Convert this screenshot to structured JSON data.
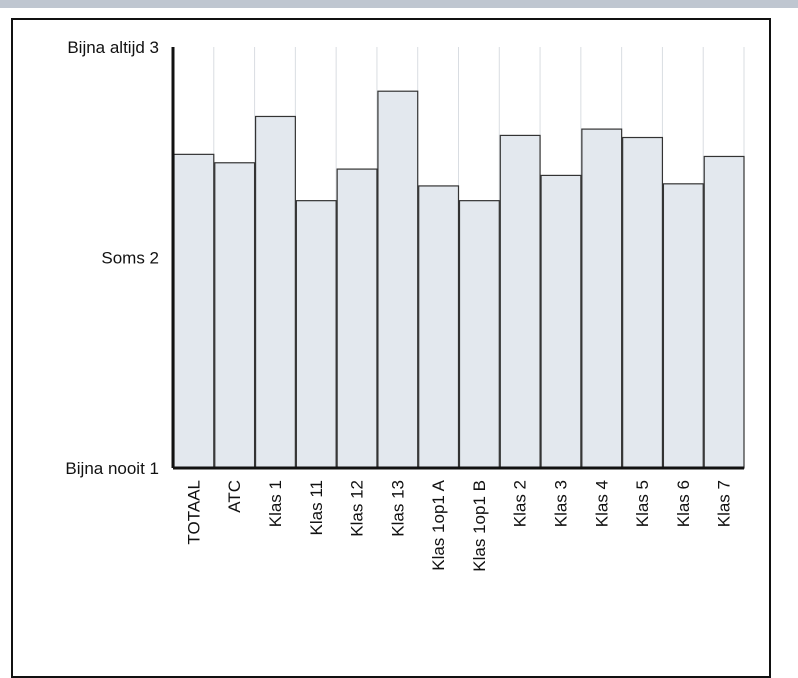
{
  "chart_data": {
    "type": "bar",
    "title": "",
    "xlabel": "",
    "ylabel": "",
    "categories": [
      "TOTAAL",
      "ATC",
      "Klas 1",
      "Klas 11",
      "Klas 12",
      "Klas 13",
      "Klas 1op1 A",
      "Klas 1op1 B",
      "Klas 2",
      "Klas 3",
      "Klas 4",
      "Klas 5",
      "Klas 6",
      "Klas 7"
    ],
    "values": [
      2.49,
      2.45,
      2.67,
      2.27,
      2.42,
      2.79,
      2.34,
      2.27,
      2.58,
      2.39,
      2.61,
      2.57,
      2.35,
      2.48
    ],
    "ylim": [
      1,
      3
    ],
    "yticks": [
      {
        "value": 1,
        "label": "Bijna nooit 1"
      },
      {
        "value": 2,
        "label": "Soms 2"
      },
      {
        "value": 3,
        "label": "Bijna altijd 3"
      }
    ],
    "grid": "vertical",
    "colors": {
      "bar_fill": "#e3e8ee",
      "bar_stroke": "#333333",
      "grid": "#d9dde2",
      "axis": "#111111"
    }
  }
}
